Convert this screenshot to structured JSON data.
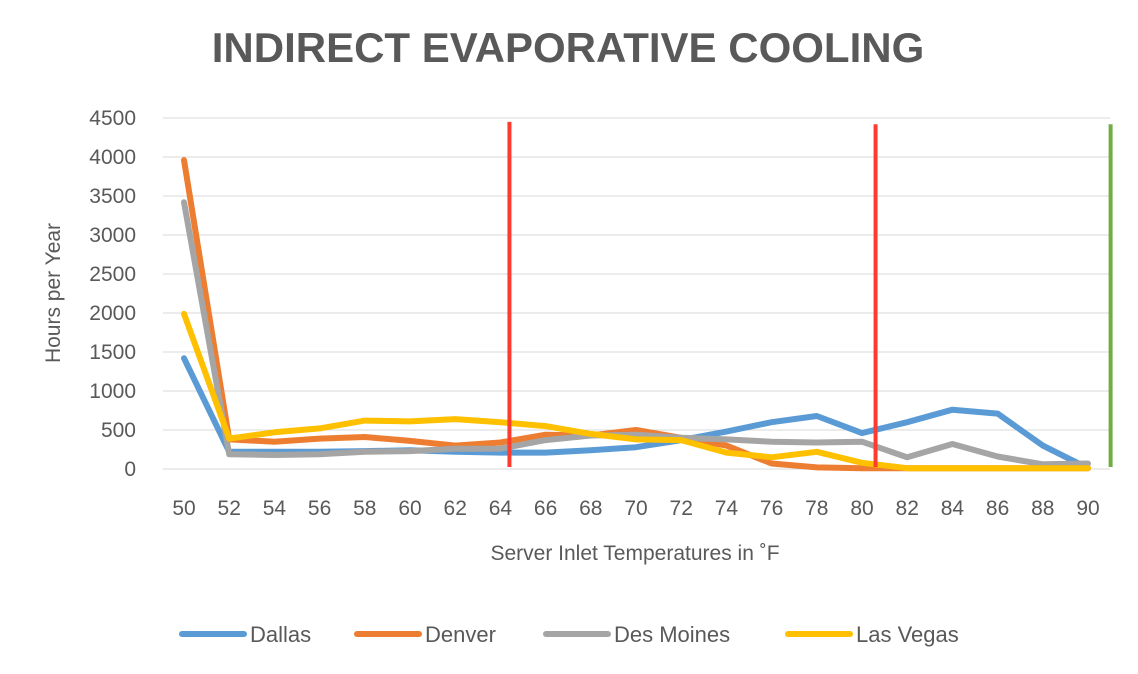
{
  "chart_data": {
    "type": "line",
    "title": "INDIRECT EVAPORATIVE COOLING",
    "xlabel": "Server Inlet Temperatures in ˚F",
    "ylabel": "Hours per Year",
    "ylim": [
      0,
      4500
    ],
    "yticks": [
      0,
      500,
      1000,
      1500,
      2000,
      2500,
      3000,
      3500,
      4000,
      4500
    ],
    "categories": [
      "50",
      "52",
      "54",
      "56",
      "58",
      "60",
      "62",
      "64",
      "66",
      "68",
      "70",
      "72",
      "74",
      "76",
      "78",
      "80",
      "82",
      "84",
      "86",
      "88",
      "90"
    ],
    "grid": true,
    "legend_position": "bottom",
    "series": [
      {
        "name": "Dallas",
        "color": "#5b9bd5",
        "values": [
          1420,
          220,
          220,
          220,
          230,
          240,
          220,
          210,
          210,
          240,
          280,
          370,
          480,
          600,
          680,
          460,
          600,
          760,
          710,
          300,
          10
        ]
      },
      {
        "name": "Denver",
        "color": "#ed7d31",
        "values": [
          3960,
          380,
          350,
          390,
          410,
          360,
          300,
          340,
          440,
          430,
          500,
          400,
          300,
          70,
          20,
          10,
          10,
          10,
          10,
          10,
          10
        ]
      },
      {
        "name": "Des Moines",
        "color": "#a5a5a5",
        "values": [
          3420,
          190,
          180,
          190,
          220,
          230,
          260,
          260,
          370,
          430,
          440,
          400,
          380,
          350,
          340,
          350,
          150,
          320,
          160,
          60,
          70
        ]
      },
      {
        "name": "Las Vegas",
        "color": "#ffc000",
        "values": [
          1990,
          390,
          470,
          520,
          620,
          610,
          640,
          600,
          550,
          450,
          380,
          370,
          210,
          150,
          220,
          80,
          10,
          10,
          10,
          10,
          10
        ]
      }
    ],
    "reference_lines": [
      {
        "x": 64.4,
        "color": "#ff3b30",
        "top": 4450
      },
      {
        "x": 80.6,
        "color": "#ff3b30",
        "top": 4420
      },
      {
        "x": 91.0,
        "color": "#70ad47",
        "top": 4420
      }
    ]
  }
}
